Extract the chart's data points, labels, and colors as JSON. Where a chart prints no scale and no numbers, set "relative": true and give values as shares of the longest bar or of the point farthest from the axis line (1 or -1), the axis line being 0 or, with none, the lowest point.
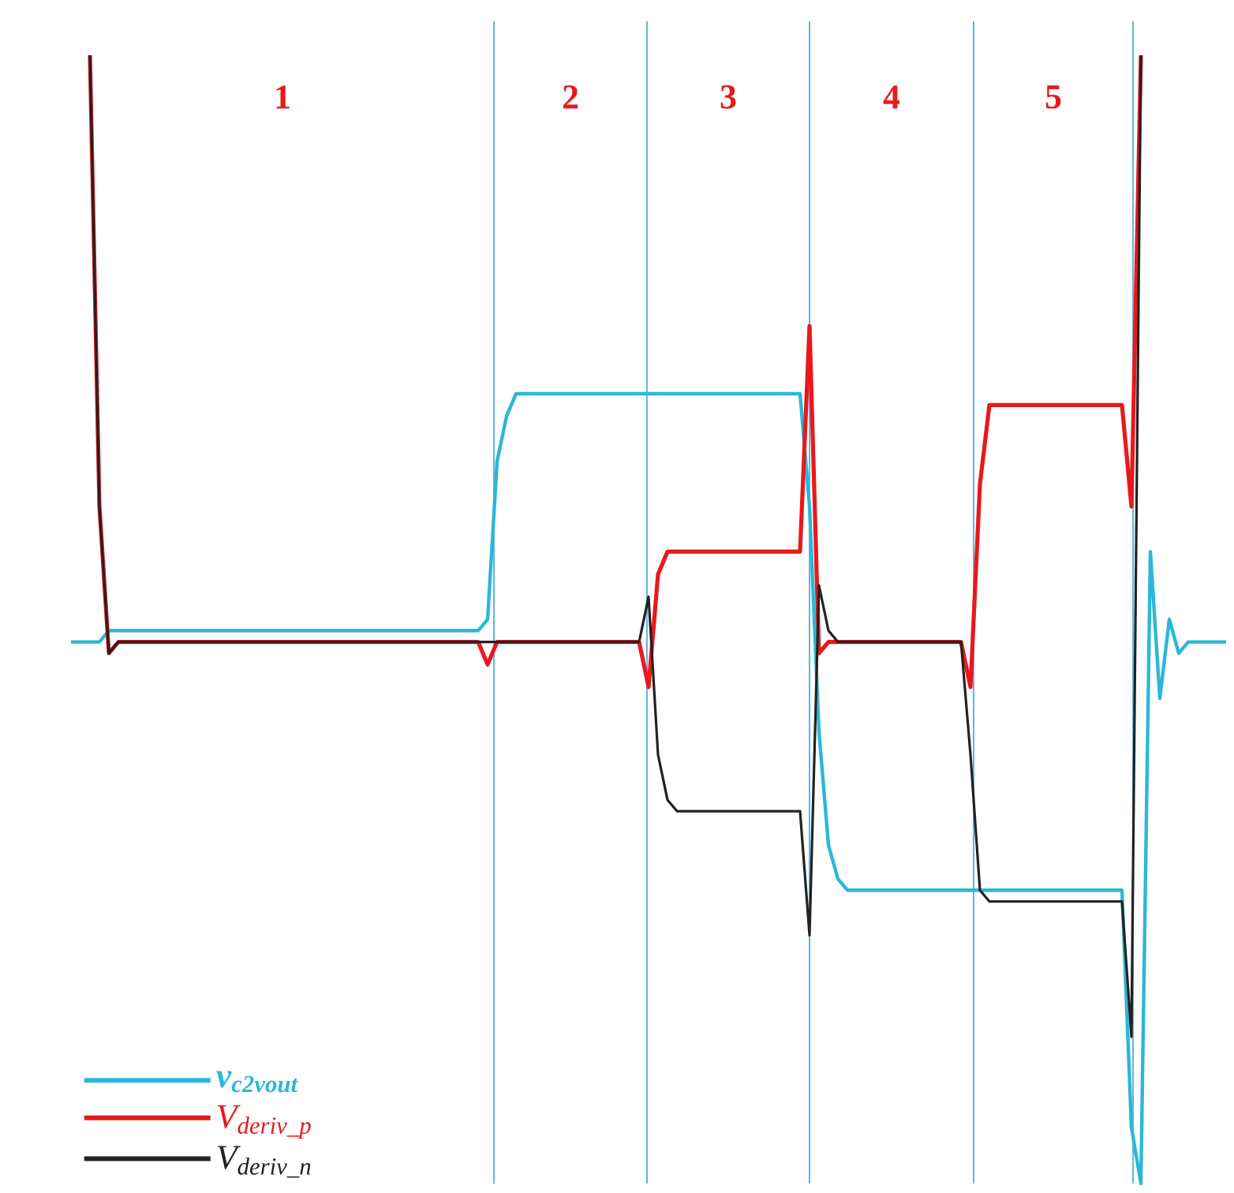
{
  "chart_data": {
    "type": "line",
    "relative": true,
    "legend": "bottom left",
    "marker": "none",
    "line_style": "solid",
    "categories": [
      null,
      null,
      null,
      null,
      null,
      null,
      null,
      null,
      null,
      null,
      null,
      null,
      null,
      null,
      null,
      null,
      null,
      null,
      null,
      null,
      null,
      null,
      null,
      null,
      null,
      null,
      null,
      null,
      null,
      null,
      null,
      null,
      null,
      null,
      null,
      null,
      null,
      null,
      null,
      null,
      null,
      null,
      null,
      null,
      null,
      null,
      null,
      null,
      null,
      null,
      null,
      null,
      null,
      null,
      null,
      null,
      null,
      null,
      null,
      null,
      null,
      null,
      null,
      null,
      null,
      null,
      null,
      null,
      null,
      null,
      null,
      null,
      null,
      null,
      null,
      null,
      null,
      null,
      null,
      null,
      null,
      null,
      null,
      null,
      null,
      null,
      null,
      null,
      null,
      null,
      null,
      null,
      null,
      null,
      null,
      null,
      null,
      null,
      null,
      null,
      null,
      null,
      null,
      null,
      null,
      null,
      null,
      null,
      null,
      null,
      null,
      null,
      null,
      null,
      null,
      null,
      null,
      null,
      null,
      null,
      null,
      null,
      null
    ],
    "series": [
      {
        "name": "v$_{c2vout}$",
        "color": "#2bb7d8",
        "values": [
          0.48,
          0.48,
          0.48,
          0.48,
          0.49,
          0.49,
          0.49,
          0.49,
          0.49,
          0.49,
          0.49,
          0.49,
          0.49,
          0.49,
          0.49,
          0.49,
          0.49,
          0.49,
          0.49,
          0.49,
          0.49,
          0.49,
          0.49,
          0.49,
          0.49,
          0.49,
          0.49,
          0.49,
          0.49,
          0.49,
          0.49,
          0.49,
          0.49,
          0.49,
          0.49,
          0.49,
          0.49,
          0.49,
          0.49,
          0.49,
          0.49,
          0.49,
          0.49,
          0.49,
          0.5,
          0.64,
          0.68,
          0.7,
          0.7,
          0.7,
          0.7,
          0.7,
          0.7,
          0.7,
          0.7,
          0.7,
          0.7,
          0.7,
          0.7,
          0.7,
          0.7,
          0.7,
          0.7,
          0.7,
          0.7,
          0.7,
          0.7,
          0.7,
          0.7,
          0.7,
          0.7,
          0.7,
          0.7,
          0.7,
          0.7,
          0.7,
          0.7,
          0.7,
          0.6,
          0.4,
          0.3,
          0.27,
          0.26,
          0.26,
          0.26,
          0.26,
          0.26,
          0.26,
          0.26,
          0.26,
          0.26,
          0.26,
          0.26,
          0.26,
          0.26,
          0.26,
          0.26,
          0.26,
          0.26,
          0.26,
          0.26,
          0.26,
          0.26,
          0.26,
          0.26,
          0.26,
          0.26,
          0.26,
          0.26,
          0.26,
          0.26,
          0.26,
          0.05,
          0.0,
          0.56,
          0.43,
          0.5,
          0.47,
          0.48,
          0.48,
          0.48,
          0.48,
          0.48
        ]
      },
      {
        "name": "V$_{deriv_p}$",
        "color": "#e8191c",
        "values": [
          null,
          null,
          1.0,
          0.6,
          0.47,
          0.48,
          0.48,
          0.48,
          0.48,
          0.48,
          0.48,
          0.48,
          0.48,
          0.48,
          0.48,
          0.48,
          0.48,
          0.48,
          0.48,
          0.48,
          0.48,
          0.48,
          0.48,
          0.48,
          0.48,
          0.48,
          0.48,
          0.48,
          0.48,
          0.48,
          0.48,
          0.48,
          0.48,
          0.48,
          0.48,
          0.48,
          0.48,
          0.48,
          0.48,
          0.48,
          0.48,
          0.48,
          0.48,
          0.48,
          0.46,
          0.48,
          0.48,
          0.48,
          0.48,
          0.48,
          0.48,
          0.48,
          0.48,
          0.48,
          0.48,
          0.48,
          0.48,
          0.48,
          0.48,
          0.48,
          0.48,
          0.44,
          0.54,
          0.56,
          0.56,
          0.56,
          0.56,
          0.56,
          0.56,
          0.56,
          0.56,
          0.56,
          0.56,
          0.56,
          0.56,
          0.56,
          0.56,
          0.56,
          0.76,
          0.47,
          0.48,
          0.48,
          0.48,
          0.48,
          0.48,
          0.48,
          0.48,
          0.48,
          0.48,
          0.48,
          0.48,
          0.48,
          0.48,
          0.48,
          0.48,
          0.44,
          0.62,
          0.69,
          0.69,
          0.69,
          0.69,
          0.69,
          0.69,
          0.69,
          0.69,
          0.69,
          0.69,
          0.69,
          0.69,
          0.69,
          0.69,
          0.69,
          0.6,
          1.0,
          null,
          null,
          null,
          null,
          null,
          null,
          null,
          null,
          null
        ]
      },
      {
        "name": "V$_{deriv_n}$",
        "color": "#222222",
        "values": [
          null,
          null,
          1.0,
          0.6,
          0.47,
          0.48,
          0.48,
          0.48,
          0.48,
          0.48,
          0.48,
          0.48,
          0.48,
          0.48,
          0.48,
          0.48,
          0.48,
          0.48,
          0.48,
          0.48,
          0.48,
          0.48,
          0.48,
          0.48,
          0.48,
          0.48,
          0.48,
          0.48,
          0.48,
          0.48,
          0.48,
          0.48,
          0.48,
          0.48,
          0.48,
          0.48,
          0.48,
          0.48,
          0.48,
          0.48,
          0.48,
          0.48,
          0.48,
          0.48,
          0.48,
          0.48,
          0.48,
          0.48,
          0.48,
          0.48,
          0.48,
          0.48,
          0.48,
          0.48,
          0.48,
          0.48,
          0.48,
          0.48,
          0.48,
          0.48,
          0.48,
          0.52,
          0.38,
          0.34,
          0.33,
          0.33,
          0.33,
          0.33,
          0.33,
          0.33,
          0.33,
          0.33,
          0.33,
          0.33,
          0.33,
          0.33,
          0.33,
          0.33,
          0.22,
          0.53,
          0.49,
          0.48,
          0.48,
          0.48,
          0.48,
          0.48,
          0.48,
          0.48,
          0.48,
          0.48,
          0.48,
          0.48,
          0.48,
          0.48,
          0.48,
          0.38,
          0.26,
          0.25,
          0.25,
          0.25,
          0.25,
          0.25,
          0.25,
          0.25,
          0.25,
          0.25,
          0.25,
          0.25,
          0.25,
          0.25,
          0.25,
          0.25,
          0.13,
          1.0,
          null,
          null,
          null,
          null,
          null,
          null,
          null,
          null,
          null
        ]
      }
    ],
    "annotations": [
      "1",
      "2",
      "3",
      "4",
      "5"
    ]
  }
}
